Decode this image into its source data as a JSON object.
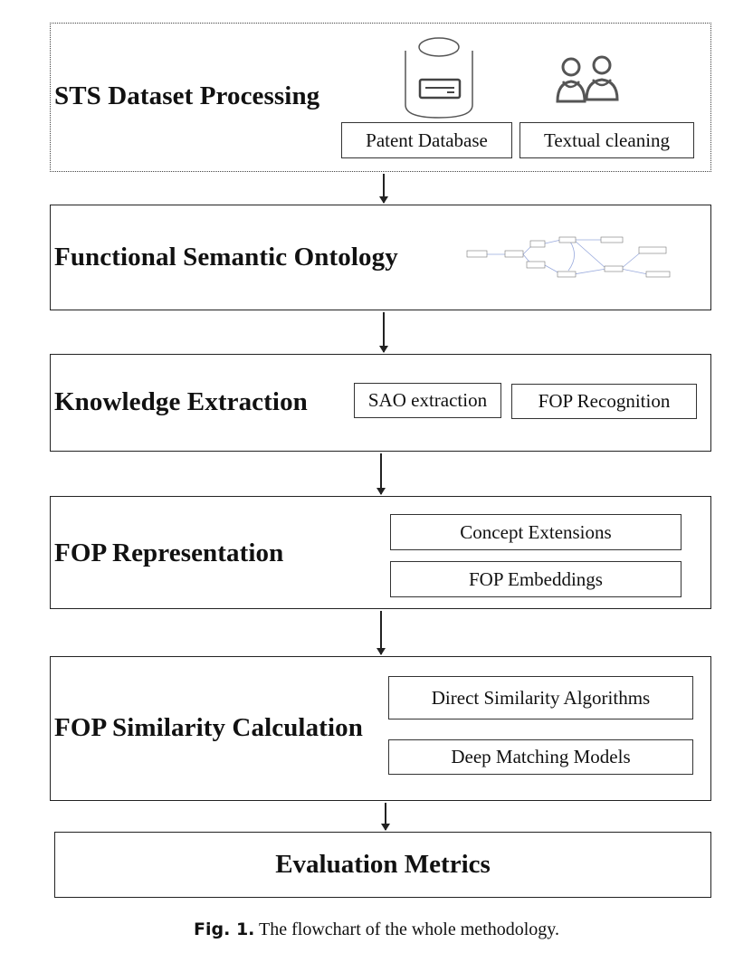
{
  "stages": {
    "s1": {
      "title": "STS Dataset Processing",
      "items": [
        "Patent Database",
        "Textual cleaning"
      ],
      "icons": [
        "database-icon",
        "users-icon"
      ]
    },
    "s2": {
      "title": "Functional Semantic Ontology",
      "icons": [
        "ontology-graph-icon"
      ]
    },
    "s3": {
      "title": "Knowledge Extraction",
      "items": [
        "SAO extraction",
        "FOP Recognition"
      ]
    },
    "s4": {
      "title": "FOP Representation",
      "items": [
        "Concept Extensions",
        "FOP Embeddings"
      ]
    },
    "s5": {
      "title": "FOP Similarity Calculation",
      "items": [
        "Direct Similarity Algorithms",
        "Deep Matching Models"
      ]
    },
    "s6": {
      "title": "Evaluation Metrics"
    }
  },
  "caption": {
    "label": "Fig. 1.",
    "text": "The flowchart of the whole methodology."
  }
}
